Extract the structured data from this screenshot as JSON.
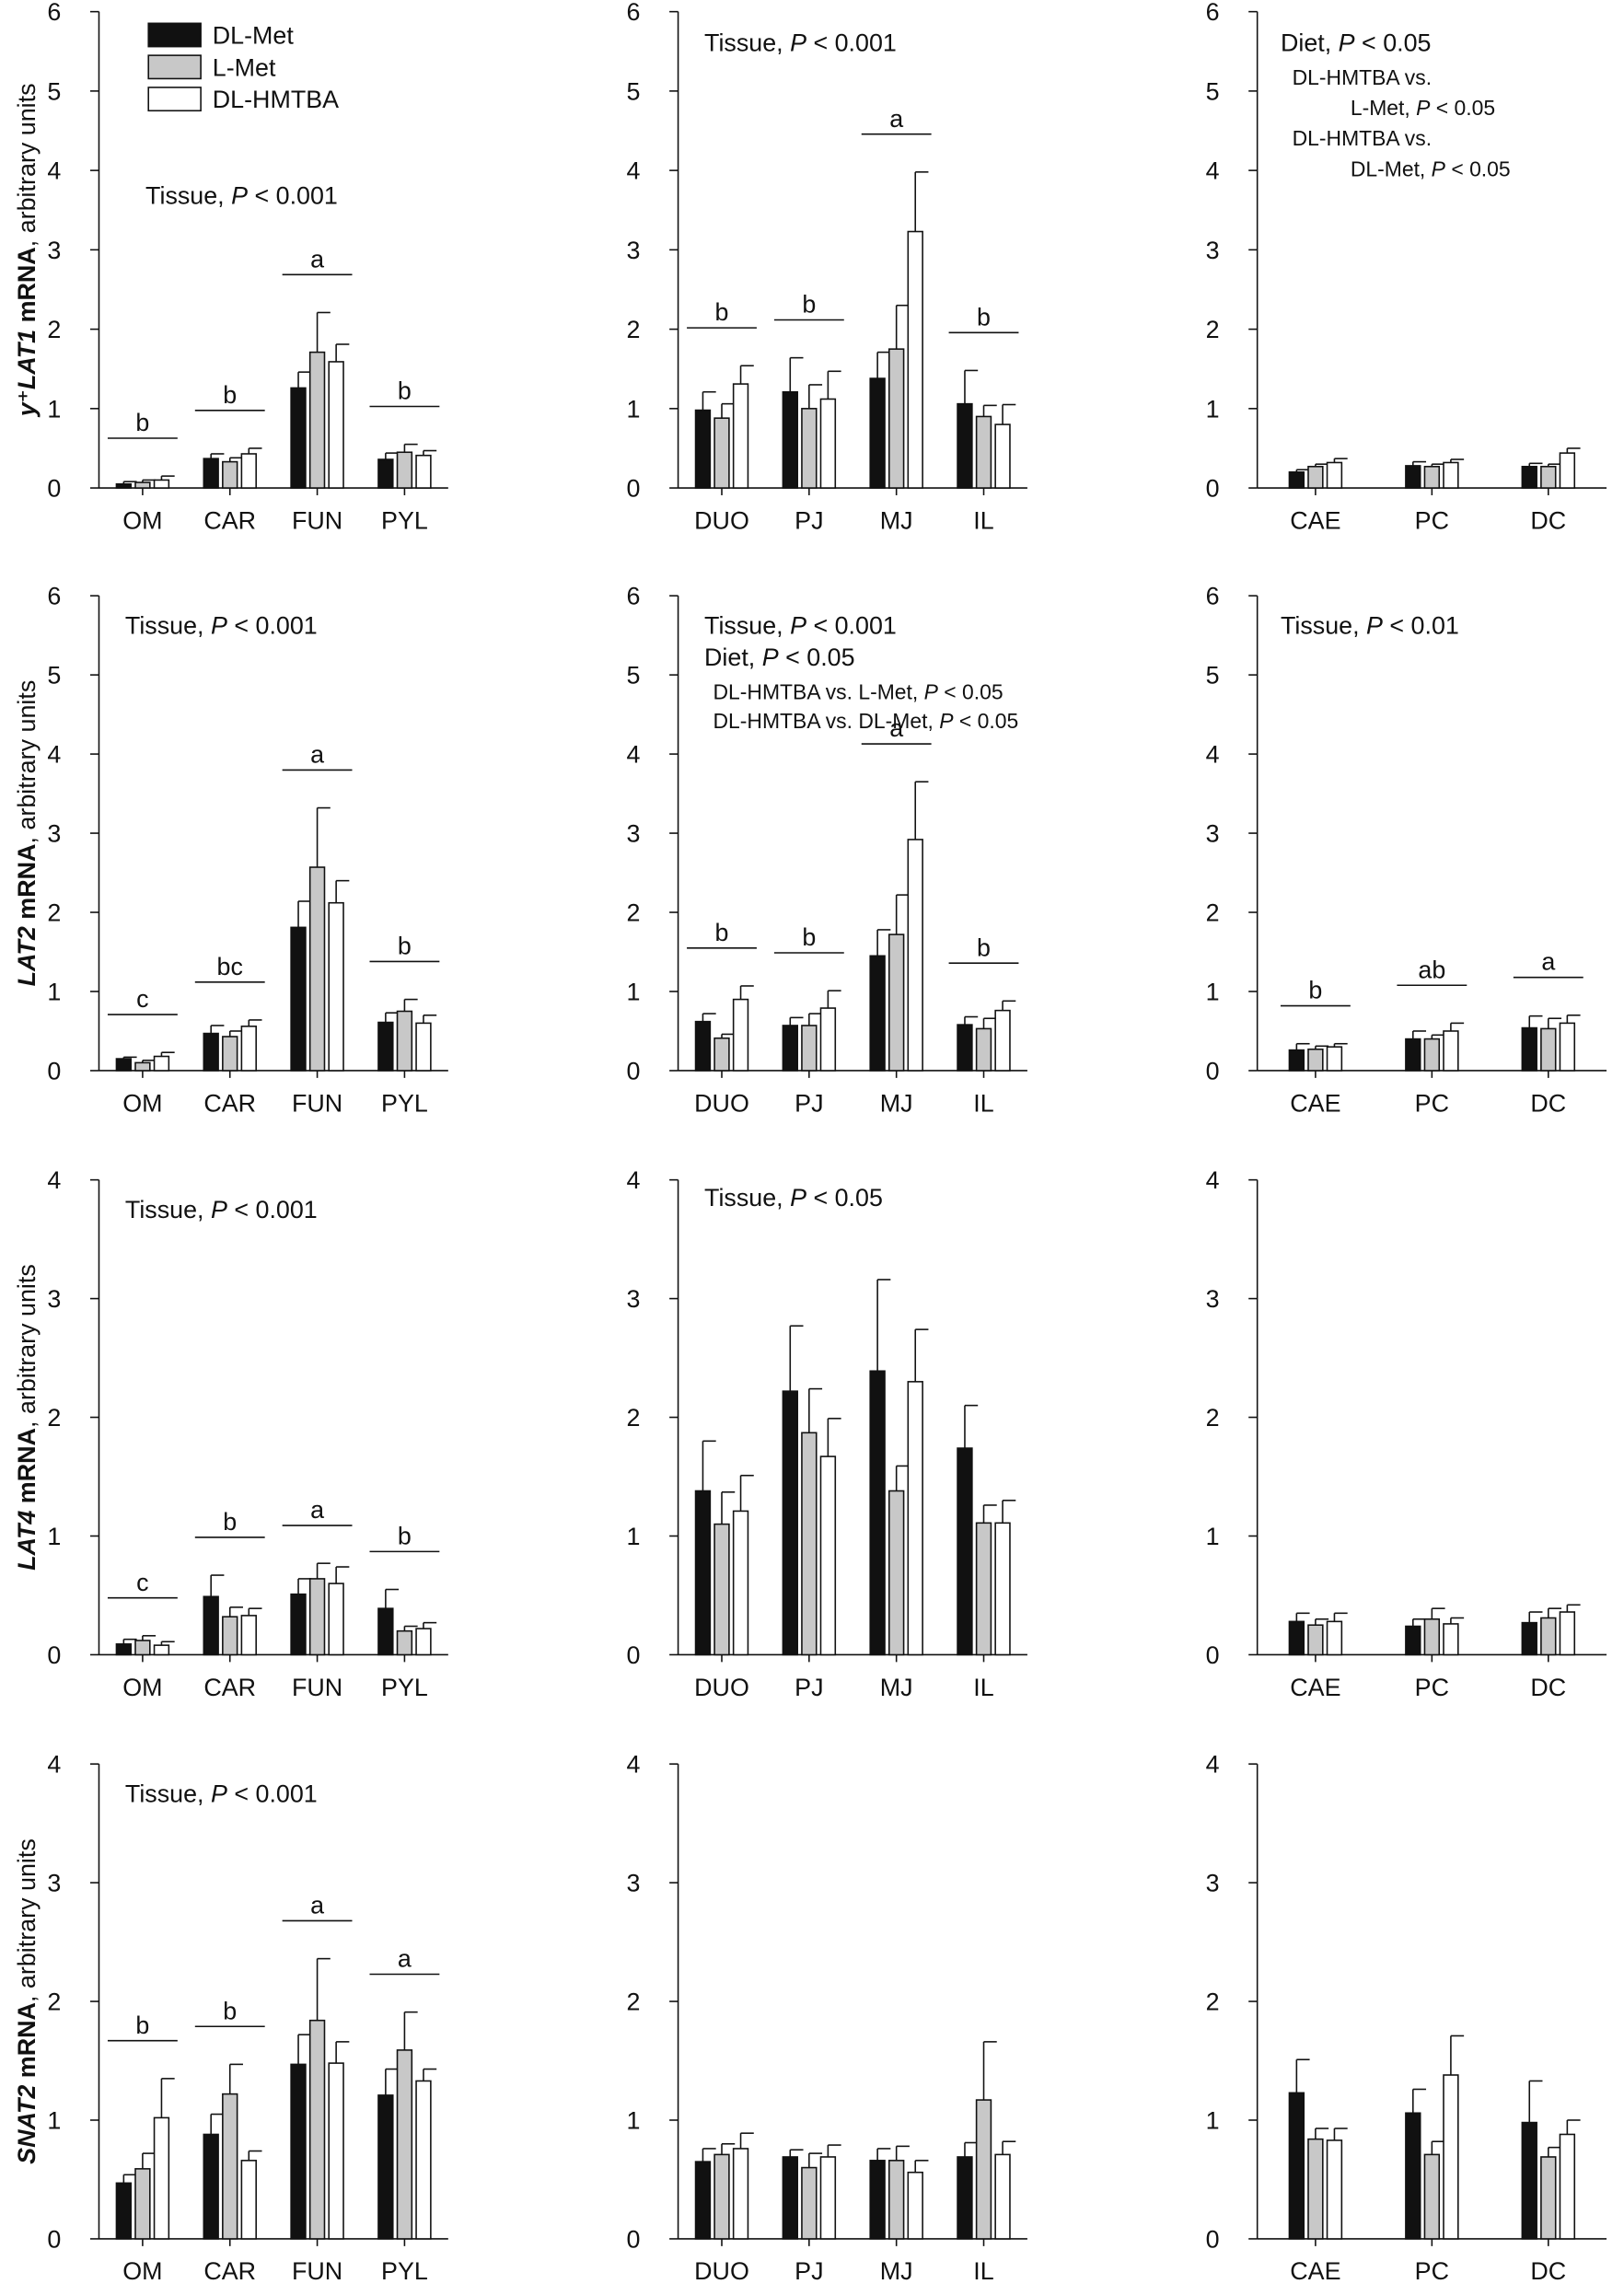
{
  "legend": [
    {
      "name": "DL-Met",
      "color": "#111111"
    },
    {
      "name": "L-Met",
      "color": "#c8c8c8"
    },
    {
      "name": "DL-HMTBA",
      "color": "#ffffff"
    }
  ],
  "row_ylabels": [
    {
      "gene": "y⁺LAT1",
      "text": "y⁺LAT1 mRNA, arbitrary units"
    },
    {
      "gene": "LAT2",
      "text": "LAT2 mRNA, arbitrary units"
    },
    {
      "gene": "LAT4",
      "text": "LAT4 mRNA, arbitrary units"
    },
    {
      "gene": "SNAT2",
      "text": "SNAT2 mRNA, arbitrary units"
    }
  ],
  "chart_data": [
    {
      "type": "bar",
      "row": 0,
      "col": 0,
      "ylim": [
        0,
        6
      ],
      "categories": [
        "OM",
        "CAR",
        "FUN",
        "PYL"
      ],
      "series": [
        {
          "name": "DL-Met",
          "values": [
            0.05,
            0.37,
            1.26,
            0.36
          ],
          "errors": [
            0.03,
            0.06,
            0.2,
            0.08
          ]
        },
        {
          "name": "L-Met",
          "values": [
            0.07,
            0.33,
            1.71,
            0.45
          ],
          "errors": [
            0.03,
            0.05,
            0.5,
            0.1
          ]
        },
        {
          "name": "DL-HMTBA",
          "values": [
            0.1,
            0.43,
            1.59,
            0.41
          ],
          "errors": [
            0.05,
            0.07,
            0.22,
            0.06
          ]
        }
      ],
      "letters": [
        "b",
        "b",
        "a",
        "b"
      ],
      "annotations": [
        {
          "text": "Tissue, P < 0.001",
          "x": 100,
          "y": 140
        }
      ]
    },
    {
      "type": "bar",
      "row": 0,
      "col": 1,
      "ylim": [
        0,
        6
      ],
      "categories": [
        "DUO",
        "PJ",
        "MJ",
        "IL"
      ],
      "series": [
        {
          "name": "DL-Met",
          "values": [
            0.98,
            1.21,
            1.38,
            1.06
          ],
          "errors": [
            0.23,
            0.43,
            0.33,
            0.42
          ]
        },
        {
          "name": "L-Met",
          "values": [
            0.88,
            1.0,
            1.75,
            0.9
          ],
          "errors": [
            0.18,
            0.3,
            0.55,
            0.14
          ]
        },
        {
          "name": "DL-HMTBA",
          "values": [
            1.31,
            1.12,
            3.23,
            0.8
          ],
          "errors": [
            0.23,
            0.35,
            0.75,
            0.25
          ]
        }
      ],
      "letters": [
        "b",
        "b",
        "a",
        "b"
      ],
      "annotations": [
        {
          "text": "Tissue, P < 0.001",
          "x": 484,
          "y": 35
        }
      ]
    },
    {
      "type": "bar",
      "row": 0,
      "col": 2,
      "ylim": [
        0,
        6
      ],
      "categories": [
        "CAE",
        "PC",
        "DC"
      ],
      "series": [
        {
          "name": "DL-Met",
          "values": [
            0.2,
            0.28,
            0.27
          ],
          "errors": [
            0.03,
            0.05,
            0.04
          ]
        },
        {
          "name": "L-Met",
          "values": [
            0.27,
            0.27,
            0.27
          ],
          "errors": [
            0.03,
            0.03,
            0.03
          ]
        },
        {
          "name": "DL-HMTBA",
          "values": [
            0.32,
            0.32,
            0.44
          ],
          "errors": [
            0.05,
            0.04,
            0.06
          ]
        }
      ],
      "letters": [],
      "annotations": [
        {
          "text": "Diet,      P < 0.05",
          "x": 880,
          "y": 35
        },
        {
          "text": "DL-HMTBA vs.",
          "x": 888,
          "y": 58,
          "small": true
        },
        {
          "text": "L-Met, P < 0.05",
          "x": 928,
          "y": 79,
          "small": true
        },
        {
          "text": "DL-HMTBA vs.",
          "x": 888,
          "y": 100,
          "small": true
        },
        {
          "text": "DL-Met, P < 0.05",
          "x": 928,
          "y": 121,
          "small": true
        }
      ]
    },
    {
      "type": "bar",
      "row": 1,
      "col": 0,
      "ylim": [
        0,
        6
      ],
      "categories": [
        "OM",
        "CAR",
        "FUN",
        "PYL"
      ],
      "series": [
        {
          "name": "DL-Met",
          "values": [
            0.15,
            0.47,
            1.81,
            0.61
          ],
          "errors": [
            0.02,
            0.1,
            0.33,
            0.12
          ]
        },
        {
          "name": "L-Met",
          "values": [
            0.1,
            0.43,
            2.57,
            0.75
          ],
          "errors": [
            0.03,
            0.07,
            0.75,
            0.15
          ]
        },
        {
          "name": "DL-HMTBA",
          "values": [
            0.18,
            0.56,
            2.12,
            0.6
          ],
          "errors": [
            0.05,
            0.08,
            0.28,
            0.1
          ]
        }
      ],
      "letters": [
        "c",
        "bc",
        "a",
        "b"
      ],
      "annotations": [
        {
          "text": "Tissue, P < 0.001",
          "x": 86,
          "y": 435
        }
      ]
    },
    {
      "type": "bar",
      "row": 1,
      "col": 1,
      "ylim": [
        0,
        6
      ],
      "categories": [
        "DUO",
        "PJ",
        "MJ",
        "IL"
      ],
      "series": [
        {
          "name": "DL-Met",
          "values": [
            0.62,
            0.57,
            1.45,
            0.58
          ],
          "errors": [
            0.1,
            0.1,
            0.33,
            0.1
          ]
        },
        {
          "name": "L-Met",
          "values": [
            0.41,
            0.57,
            1.72,
            0.53
          ],
          "errors": [
            0.05,
            0.15,
            0.5,
            0.13
          ]
        },
        {
          "name": "DL-HMTBA",
          "values": [
            0.9,
            0.79,
            2.92,
            0.76
          ],
          "errors": [
            0.17,
            0.22,
            0.73,
            0.12
          ]
        }
      ],
      "letters": [
        "b",
        "b",
        "a",
        "b"
      ],
      "annotations": [
        {
          "text": "Tissue, P < 0.001",
          "x": 484,
          "y": 435
        },
        {
          "text": "Diet,      P < 0.05",
          "x": 484,
          "y": 457
        },
        {
          "text": "DL-HMTBA vs. L-Met, P < 0.05",
          "x": 490,
          "y": 480,
          "small": true
        },
        {
          "text": "DL-HMTBA vs. DL-Met, P < 0.05",
          "x": 490,
          "y": 500,
          "small": true
        }
      ]
    },
    {
      "type": "bar",
      "row": 1,
      "col": 2,
      "ylim": [
        0,
        6
      ],
      "categories": [
        "CAE",
        "PC",
        "DC"
      ],
      "series": [
        {
          "name": "DL-Met",
          "values": [
            0.26,
            0.4,
            0.54
          ],
          "errors": [
            0.08,
            0.1,
            0.15
          ]
        },
        {
          "name": "L-Met",
          "values": [
            0.27,
            0.4,
            0.53
          ],
          "errors": [
            0.04,
            0.05,
            0.13
          ]
        },
        {
          "name": "DL-HMTBA",
          "values": [
            0.3,
            0.5,
            0.6
          ],
          "errors": [
            0.04,
            0.1,
            0.1
          ]
        }
      ],
      "letters": [
        "b",
        "ab",
        "a"
      ],
      "annotations": [
        {
          "text": "Tissue, P < 0.01",
          "x": 880,
          "y": 435
        }
      ]
    },
    {
      "type": "bar",
      "row": 2,
      "col": 0,
      "ylim": [
        0,
        4
      ],
      "categories": [
        "OM",
        "CAR",
        "FUN",
        "PYL"
      ],
      "series": [
        {
          "name": "DL-Met",
          "values": [
            0.09,
            0.49,
            0.51,
            0.39
          ],
          "errors": [
            0.04,
            0.18,
            0.13,
            0.16
          ]
        },
        {
          "name": "L-Met",
          "values": [
            0.12,
            0.32,
            0.64,
            0.2
          ],
          "errors": [
            0.04,
            0.08,
            0.13,
            0.04
          ]
        },
        {
          "name": "DL-HMTBA",
          "values": [
            0.08,
            0.33,
            0.6,
            0.22
          ],
          "errors": [
            0.03,
            0.06,
            0.14,
            0.05
          ]
        }
      ],
      "letters": [
        "c",
        "b",
        "a",
        "b"
      ],
      "annotations": [
        {
          "text": "Tissue, P < 0.001",
          "x": 86,
          "y": 836
        }
      ]
    },
    {
      "type": "bar",
      "row": 2,
      "col": 1,
      "ylim": [
        0,
        4
      ],
      "categories": [
        "DUO",
        "PJ",
        "MJ",
        "IL"
      ],
      "series": [
        {
          "name": "DL-Met",
          "values": [
            1.38,
            2.22,
            2.39,
            1.74
          ],
          "errors": [
            0.42,
            0.55,
            0.77,
            0.36
          ]
        },
        {
          "name": "L-Met",
          "values": [
            1.1,
            1.87,
            1.38,
            1.11
          ],
          "errors": [
            0.27,
            0.37,
            0.21,
            0.15
          ]
        },
        {
          "name": "DL-HMTBA",
          "values": [
            1.21,
            1.67,
            2.3,
            1.11
          ],
          "errors": [
            0.3,
            0.32,
            0.44,
            0.19
          ]
        }
      ],
      "letters": [],
      "annotations": [
        {
          "text": "Tissue, P < 0.05",
          "x": 484,
          "y": 828
        }
      ]
    },
    {
      "type": "bar",
      "row": 2,
      "col": 2,
      "ylim": [
        0,
        4
      ],
      "categories": [
        "CAE",
        "PC",
        "DC"
      ],
      "series": [
        {
          "name": "DL-Met",
          "values": [
            0.28,
            0.24,
            0.27
          ],
          "errors": [
            0.07,
            0.06,
            0.09
          ]
        },
        {
          "name": "L-Met",
          "values": [
            0.25,
            0.3,
            0.31
          ],
          "errors": [
            0.05,
            0.09,
            0.08
          ]
        },
        {
          "name": "DL-HMTBA",
          "values": [
            0.28,
            0.26,
            0.36
          ],
          "errors": [
            0.07,
            0.05,
            0.06
          ]
        }
      ],
      "letters": [],
      "annotations": []
    },
    {
      "type": "bar",
      "row": 3,
      "col": 0,
      "ylim": [
        0,
        4
      ],
      "categories": [
        "OM",
        "CAR",
        "FUN",
        "PYL"
      ],
      "series": [
        {
          "name": "DL-Met",
          "values": [
            0.47,
            0.88,
            1.47,
            1.21
          ],
          "errors": [
            0.07,
            0.17,
            0.25,
            0.22
          ]
        },
        {
          "name": "L-Met",
          "values": [
            0.59,
            1.22,
            1.84,
            1.59
          ],
          "errors": [
            0.13,
            0.25,
            0.52,
            0.32
          ]
        },
        {
          "name": "DL-HMTBA",
          "values": [
            1.02,
            0.66,
            1.48,
            1.33
          ],
          "errors": [
            0.33,
            0.08,
            0.18,
            0.1
          ]
        }
      ],
      "letters": [
        "b",
        "b",
        "a",
        "a"
      ],
      "annotations": [
        {
          "text": "Tissue, P < 0.001",
          "x": 86,
          "y": 1237
        }
      ]
    },
    {
      "type": "bar",
      "row": 3,
      "col": 1,
      "ylim": [
        0,
        4
      ],
      "categories": [
        "DUO",
        "PJ",
        "MJ",
        "IL"
      ],
      "series": [
        {
          "name": "DL-Met",
          "values": [
            0.65,
            0.69,
            0.66,
            0.69
          ],
          "errors": [
            0.11,
            0.06,
            0.1,
            0.12
          ]
        },
        {
          "name": "L-Met",
          "values": [
            0.71,
            0.6,
            0.66,
            1.17
          ],
          "errors": [
            0.09,
            0.12,
            0.12,
            0.49
          ]
        },
        {
          "name": "DL-HMTBA",
          "values": [
            0.76,
            0.69,
            0.56,
            0.71
          ],
          "errors": [
            0.13,
            0.1,
            0.1,
            0.11
          ]
        }
      ],
      "letters": [],
      "annotations": []
    },
    {
      "type": "bar",
      "row": 3,
      "col": 2,
      "ylim": [
        0,
        4
      ],
      "categories": [
        "CAE",
        "PC",
        "DC"
      ],
      "series": [
        {
          "name": "DL-Met",
          "values": [
            1.23,
            1.06,
            0.98
          ],
          "errors": [
            0.28,
            0.2,
            0.35
          ]
        },
        {
          "name": "L-Met",
          "values": [
            0.84,
            0.71,
            0.69
          ],
          "errors": [
            0.09,
            0.11,
            0.08
          ]
        },
        {
          "name": "DL-HMTBA",
          "values": [
            0.83,
            1.38,
            0.88
          ],
          "errors": [
            0.1,
            0.33,
            0.12
          ]
        }
      ],
      "letters": [],
      "annotations": []
    }
  ]
}
